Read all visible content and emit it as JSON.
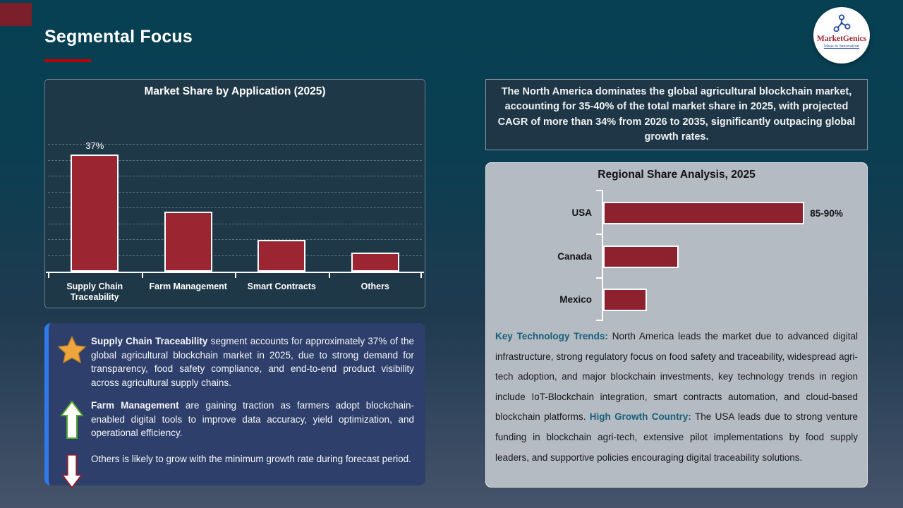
{
  "slide": {
    "title": "Segmental Focus"
  },
  "logo": {
    "name": "MarketGenics",
    "tagline": "Ideas to Innovation"
  },
  "highlight_box": {
    "text": "The North America dominates the global agricultural blockchain market, accounting for 35-40% of the total market share in 2025, with projected CAGR of more than 34% from 2026 to 2035, significantly outpacing global growth rates."
  },
  "insights": {
    "items": [
      {
        "icon": "star-icon",
        "lead": "Supply Chain Traceability",
        "rest": "segment accounts for approximately 37% of the global agricultural blockchain market in 2025, due to strong demand for transparency, food safety compliance, and end-to-end product visibility across agricultural supply chains."
      },
      {
        "icon": "up-arrow-icon",
        "lead": "Farm Management",
        "rest": "are gaining traction as farmers adopt blockchain-enabled digital tools to improve data accuracy, yield optimization, and operational efficiency."
      },
      {
        "icon": "down-arrow-icon",
        "lead": "",
        "rest": "Others is likely to grow with the minimum growth rate during forecast period."
      }
    ]
  },
  "regional_notes": {
    "paragraphs": [
      {
        "heading": "Key Technology Trends:",
        "body": "North America leads the market due to advanced digital infrastructure, strong regulatory focus on food safety and traceability, widespread agri-tech adoption, and major blockchain investments, key technology trends in region include IoT-Blockchain integration, smart contracts automation, and cloud-based blockchain platforms."
      },
      {
        "heading": "High Growth Country:",
        "body": "The USA leads due to strong venture funding in blockchain agri-tech, extensive pilot implementations by food supply leaders, and supportive policies encouraging digital traceability solutions."
      }
    ]
  },
  "colors": {
    "accent_red": "#c00000",
    "bar_red": "#9b2531",
    "regional_bar_red": "#8e212e",
    "panel_navy": "#1f3847",
    "insight_blue": "#2e3f6b",
    "insight_stripe_blue": "#2f79ea",
    "gray_panel": "#b5bbc3",
    "note_heading_teal": "#176078",
    "star_gold": "#eda53d"
  },
  "chart_data": [
    {
      "type": "bar",
      "title": "Market Share by Application (2025)",
      "categories": [
        "Supply Chain Traceability",
        "Farm Management",
        "Smart Contracts",
        "Others"
      ],
      "values": [
        37,
        19,
        10,
        6
      ],
      "data_labels": [
        "37%",
        "",
        "",
        ""
      ],
      "xlabel": "",
      "ylabel": "",
      "ylim": [
        0,
        40
      ],
      "grid": true,
      "gridline_step": 5,
      "legend": "none"
    },
    {
      "type": "bar",
      "orientation": "horizontal",
      "title": "Regional Share Analysis, 2025",
      "categories": [
        "USA",
        "Canada",
        "Mexico"
      ],
      "values": [
        88,
        33,
        19
      ],
      "data_labels": [
        "85-90%",
        "",
        ""
      ],
      "xlabel": "",
      "ylabel": "",
      "xlim": [
        0,
        95
      ],
      "grid": false,
      "legend": "none"
    }
  ]
}
